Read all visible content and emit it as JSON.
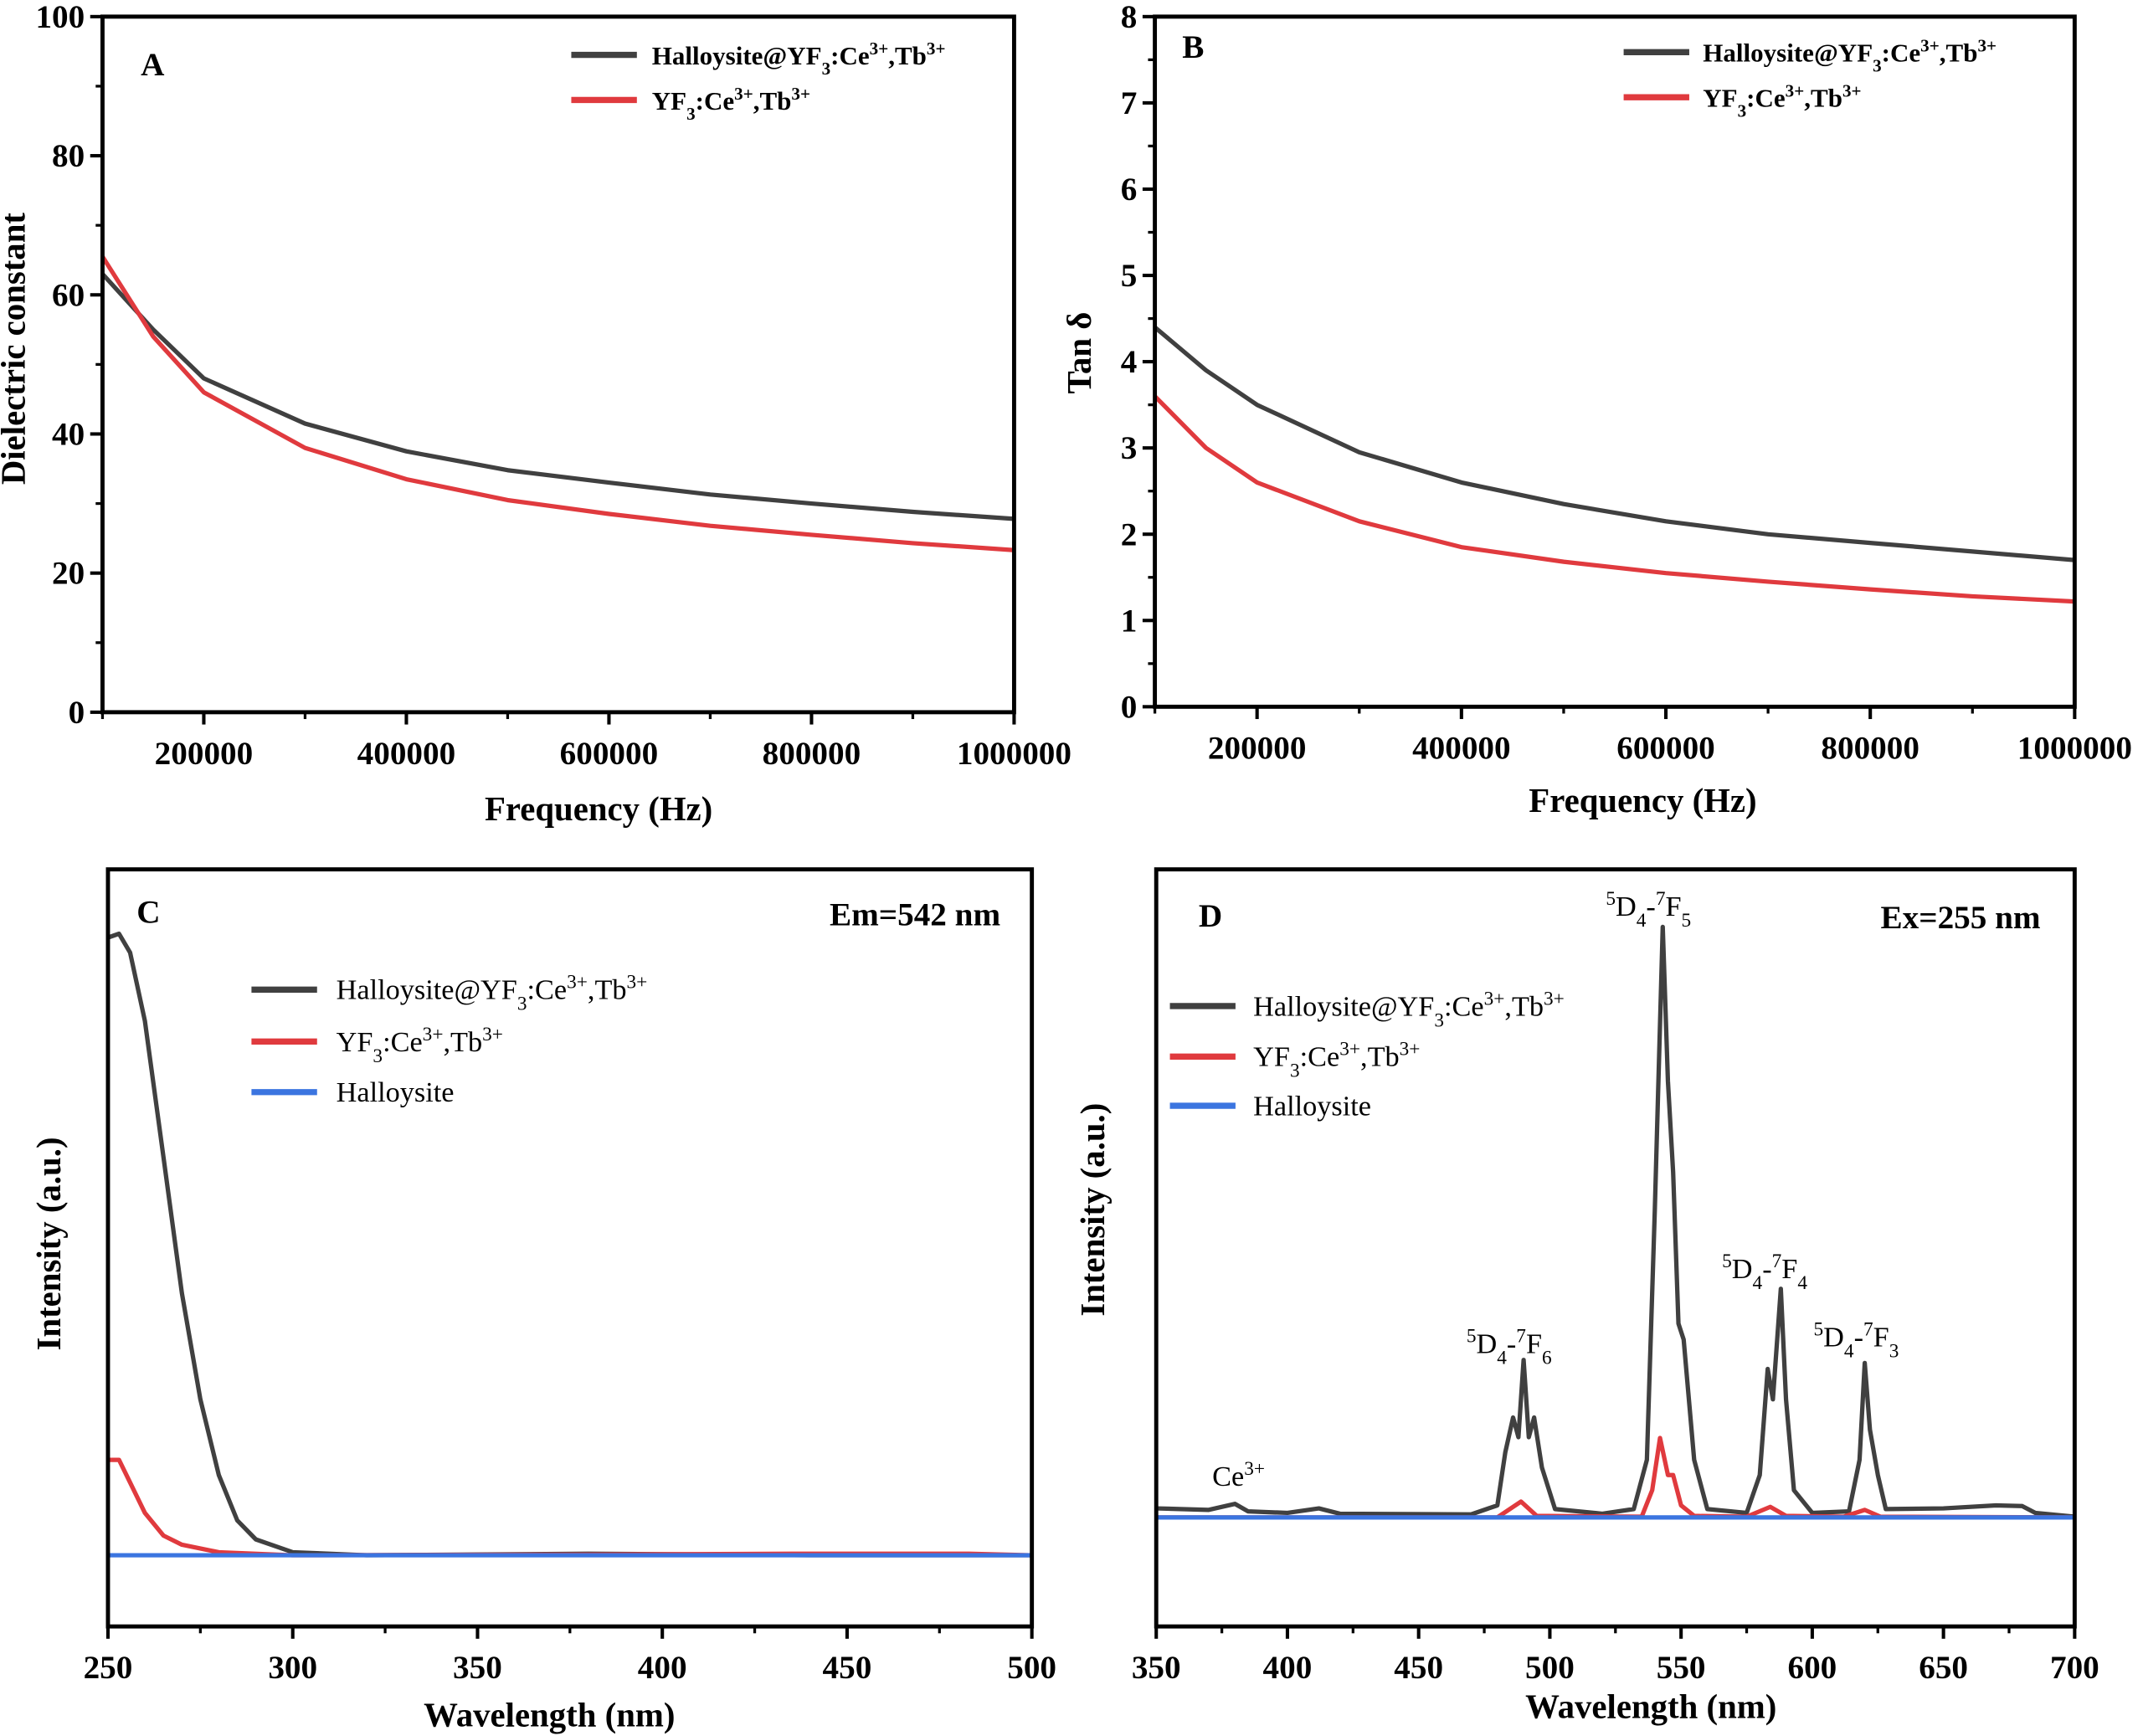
{
  "colors": {
    "black": "#404040",
    "red": "#e03a3e",
    "blue": "#3b75e0",
    "axis": "#000000"
  },
  "chart_data": [
    {
      "panel": "A",
      "type": "line",
      "xlabel": "Frequency (Hz)",
      "ylabel": "Dielectric constant",
      "xlim": [
        100000,
        1000000
      ],
      "ylim": [
        0,
        100
      ],
      "xticks": [
        200000,
        400000,
        600000,
        800000,
        1000000
      ],
      "yticks": [
        0,
        20,
        40,
        60,
        80,
        100
      ],
      "legend": "top-right",
      "grid": false,
      "series": [
        {
          "name": "Halloysite@YF3:Ce3+,Tb3+",
          "name_rich": [
            [
              "",
              "Halloysite@YF"
            ],
            [
              "sub",
              "3"
            ],
            [
              "",
              ":Ce"
            ],
            [
              "sup",
              "3+"
            ],
            [
              "",
              ",Tb"
            ],
            [
              "sup",
              "3+"
            ]
          ],
          "color": "#404040",
          "x": [
            100000,
            150000,
            200000,
            300000,
            400000,
            500000,
            600000,
            700000,
            800000,
            900000,
            1000000
          ],
          "y": [
            63,
            55,
            48,
            41.5,
            37.5,
            34.8,
            33,
            31.3,
            30,
            28.8,
            27.8
          ]
        },
        {
          "name": "YF3:Ce3+,Tb3+",
          "name_rich": [
            [
              "",
              "YF"
            ],
            [
              "sub",
              "3"
            ],
            [
              "",
              ":Ce"
            ],
            [
              "sup",
              "3+"
            ],
            [
              "",
              ",Tb"
            ],
            [
              "sup",
              "3+"
            ]
          ],
          "color": "#e03a3e",
          "x": [
            100000,
            150000,
            200000,
            300000,
            400000,
            500000,
            600000,
            700000,
            800000,
            900000,
            1000000
          ],
          "y": [
            65.5,
            54,
            46,
            38,
            33.5,
            30.5,
            28.5,
            26.8,
            25.5,
            24.3,
            23.3
          ]
        }
      ]
    },
    {
      "panel": "B",
      "type": "line",
      "xlabel": "Frequency (Hz)",
      "ylabel": "Tan δ",
      "xlim": [
        100000,
        1000000
      ],
      "ylim": [
        0,
        8
      ],
      "xticks": [
        200000,
        400000,
        600000,
        800000,
        1000000
      ],
      "yticks": [
        0,
        1,
        2,
        3,
        4,
        5,
        6,
        7,
        8
      ],
      "legend": "top-right",
      "grid": false,
      "series": [
        {
          "name": "Halloysite@YF3:Ce3+,Tb3+",
          "name_rich": [
            [
              "",
              "Halloysite@YF"
            ],
            [
              "sub",
              "3"
            ],
            [
              "",
              ":Ce"
            ],
            [
              "sup",
              "3+"
            ],
            [
              "",
              ",Tb"
            ],
            [
              "sup",
              "3+"
            ]
          ],
          "color": "#404040",
          "x": [
            100000,
            150000,
            200000,
            300000,
            400000,
            500000,
            600000,
            700000,
            800000,
            900000,
            1000000
          ],
          "y": [
            4.4,
            3.9,
            3.5,
            2.95,
            2.6,
            2.35,
            2.15,
            2.0,
            1.9,
            1.8,
            1.7
          ]
        },
        {
          "name": "YF3:Ce3+,Tb3+",
          "name_rich": [
            [
              "",
              "YF"
            ],
            [
              "sub",
              "3"
            ],
            [
              "",
              ":Ce"
            ],
            [
              "sup",
              "3+"
            ],
            [
              "",
              ",Tb"
            ],
            [
              "sup",
              "3+"
            ]
          ],
          "color": "#e03a3e",
          "x": [
            100000,
            150000,
            200000,
            300000,
            400000,
            500000,
            600000,
            700000,
            800000,
            900000,
            1000000
          ],
          "y": [
            3.6,
            3.0,
            2.6,
            2.15,
            1.85,
            1.68,
            1.55,
            1.45,
            1.36,
            1.28,
            1.22
          ]
        }
      ]
    },
    {
      "panel": "C",
      "type": "line",
      "xlabel": "Wavelength (nm)",
      "ylabel": "Intensity (a.u.)",
      "annotation": "Em=542 nm",
      "xlim": [
        250,
        500
      ],
      "ylim": [
        0,
        100
      ],
      "xticks": [
        250,
        300,
        350,
        400,
        450,
        500
      ],
      "legend": "top-left",
      "grid": false,
      "series": [
        {
          "name": "Halloysite@YF3:Ce3+,Tb3+",
          "name_rich": [
            [
              "",
              "Halloysite@YF"
            ],
            [
              "sub",
              "3"
            ],
            [
              "",
              ":Ce"
            ],
            [
              "sup",
              "3+"
            ],
            [
              "",
              ",Tb"
            ],
            [
              "sup",
              "3+"
            ]
          ],
          "color": "#404040",
          "x": [
            250,
            253,
            256,
            260,
            265,
            270,
            275,
            280,
            285,
            290,
            300,
            320,
            380,
            440,
            500
          ],
          "y": [
            91,
            91.5,
            89,
            80,
            62,
            44,
            30,
            20,
            14,
            11.5,
            9.8,
            9.4,
            9.6,
            9.4,
            9.4
          ]
        },
        {
          "name": "YF3:Ce3+,Tb3+",
          "name_rich": [
            [
              "",
              "YF"
            ],
            [
              "sub",
              "3"
            ],
            [
              "",
              ":Ce"
            ],
            [
              "sup",
              "3+"
            ],
            [
              "",
              ",Tb"
            ],
            [
              "sup",
              "3+"
            ]
          ],
          "color": "#e03a3e",
          "x": [
            250,
            253,
            256,
            260,
            265,
            270,
            280,
            300,
            380,
            435,
            483,
            500
          ],
          "y": [
            22,
            22,
            19,
            15,
            12,
            10.8,
            9.8,
            9.4,
            9.5,
            9.6,
            9.6,
            9.4
          ]
        },
        {
          "name": "Halloysite",
          "name_rich": [
            [
              "",
              "Halloysite"
            ]
          ],
          "color": "#3b75e0",
          "x": [
            250,
            500
          ],
          "y": [
            9.4,
            9.4
          ]
        }
      ]
    },
    {
      "panel": "D",
      "type": "line",
      "xlabel": "Wavelength (nm)",
      "ylabel": "Intensity (a.u.)",
      "annotation": "Ex=255 nm",
      "xlim": [
        350,
        700
      ],
      "ylim": [
        0,
        100
      ],
      "xticks": [
        350,
        400,
        450,
        500,
        550,
        600,
        650,
        700
      ],
      "legend": "top-left",
      "grid": false,
      "peak_labels": [
        {
          "x": 490,
          "rich": [
            [
              "sup",
              "5"
            ],
            [
              "",
              "D"
            ],
            [
              "sub",
              "4"
            ],
            [
              "",
              "-"
            ],
            [
              "sup",
              "7"
            ],
            [
              "",
              "F"
            ],
            [
              "sub",
              "6"
            ]
          ]
        },
        {
          "x": 543,
          "rich": [
            [
              "sup",
              "5"
            ],
            [
              "",
              "D"
            ],
            [
              "sub",
              "4"
            ],
            [
              "",
              "-"
            ],
            [
              "sup",
              "7"
            ],
            [
              "",
              "F"
            ],
            [
              "sub",
              "5"
            ]
          ]
        },
        {
          "x": 588,
          "rich": [
            [
              "sup",
              "5"
            ],
            [
              "",
              "D"
            ],
            [
              "sub",
              "4"
            ],
            [
              "",
              "-"
            ],
            [
              "sup",
              "7"
            ],
            [
              "",
              "F"
            ],
            [
              "sub",
              "4"
            ]
          ]
        },
        {
          "x": 620,
          "rich": [
            [
              "sup",
              "5"
            ],
            [
              "",
              "D"
            ],
            [
              "sub",
              "4"
            ],
            [
              "",
              "-"
            ],
            [
              "sup",
              "7"
            ],
            [
              "",
              "F"
            ],
            [
              "sub",
              "3"
            ]
          ]
        },
        {
          "x": 380,
          "rich": [
            [
              "",
              "Ce"
            ],
            [
              "sup",
              "3+"
            ]
          ]
        }
      ],
      "series": [
        {
          "name": "Halloysite@YF3:Ce3+,Tb3+",
          "name_rich": [
            [
              "",
              "Halloysite@YF"
            ],
            [
              "sub",
              "3"
            ],
            [
              "",
              ":Ce"
            ],
            [
              "sup",
              "3+"
            ],
            [
              "",
              ",Tb"
            ],
            [
              "sup",
              "3+"
            ]
          ],
          "color": "#404040",
          "x": [
            350,
            370,
            380,
            385,
            400,
            412,
            420,
            470,
            480,
            483,
            486,
            488,
            490,
            492,
            494,
            497,
            502,
            520,
            532,
            537,
            540,
            543,
            545,
            547,
            549,
            551,
            555,
            560,
            575,
            580,
            583,
            585,
            588,
            590,
            593,
            600,
            614,
            618,
            620,
            622,
            625,
            628,
            650,
            670,
            680,
            685,
            700
          ],
          "y": [
            15.6,
            15.4,
            16.2,
            15.2,
            15,
            15.6,
            14.9,
            14.8,
            16,
            23,
            27.6,
            25,
            35.2,
            25,
            27.6,
            21,
            15.5,
            14.9,
            15.5,
            22,
            55,
            92.4,
            72,
            60,
            40,
            37.9,
            22,
            15.5,
            15,
            20,
            34,
            30,
            44.6,
            30,
            18,
            15,
            15.2,
            22,
            34.8,
            26,
            20,
            15.5,
            15.6,
            16,
            15.9,
            15,
            14.5
          ]
        },
        {
          "name": "YF3:Ce3+,Tb3+",
          "name_rich": [
            [
              "",
              "YF"
            ],
            [
              "sub",
              "3"
            ],
            [
              "",
              ":Ce"
            ],
            [
              "sup",
              "3+"
            ],
            [
              "",
              ",Tb"
            ],
            [
              "sup",
              "3+"
            ]
          ],
          "color": "#e03a3e",
          "x": [
            350,
            480,
            489,
            495,
            535,
            539,
            542,
            545,
            547,
            550,
            555,
            575,
            584,
            590,
            612,
            620,
            626,
            700
          ],
          "y": [
            14.4,
            14.4,
            16.5,
            14.6,
            14.5,
            18,
            24.9,
            20,
            20,
            16,
            14.6,
            14.5,
            15.8,
            14.6,
            14.5,
            15.4,
            14.5,
            14.4
          ]
        },
        {
          "name": "Halloysite",
          "name_rich": [
            [
              "",
              "Halloysite"
            ]
          ],
          "color": "#3b75e0",
          "x": [
            350,
            700
          ],
          "y": [
            14.4,
            14.4
          ]
        }
      ]
    }
  ]
}
